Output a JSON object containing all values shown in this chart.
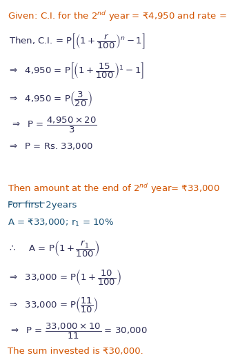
{
  "bg_color": "#ffffff",
  "text_color_dark": "#2c2c54",
  "text_color_orange": "#d35400",
  "text_color_blue": "#1a5276",
  "figsize": [
    3.32,
    5.25
  ],
  "dpi": 100,
  "fs": 9.5,
  "lh": 0.072
}
